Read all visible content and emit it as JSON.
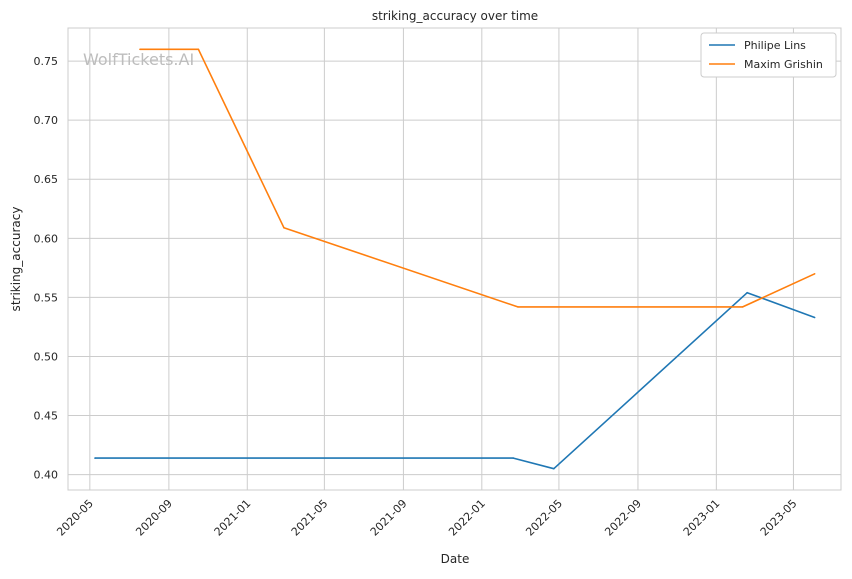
{
  "chart_data": {
    "type": "line",
    "title": "striking_accuracy over time",
    "xlabel": "Date",
    "ylabel": "striking_accuracy",
    "watermark": "WolfTickets.AI",
    "x_ticks": [
      "2020-05",
      "2020-09",
      "2021-01",
      "2021-05",
      "2021-09",
      "2022-01",
      "2022-05",
      "2022-09",
      "2023-01",
      "2023-05"
    ],
    "y_ticks": [
      "0.40",
      "0.45",
      "0.50",
      "0.55",
      "0.60",
      "0.65",
      "0.70",
      "0.75"
    ],
    "xlim": [
      "2020-03-28",
      "2023-07-14"
    ],
    "ylim": [
      0.387,
      0.778
    ],
    "grid": true,
    "legend_position": "top-right",
    "series": [
      {
        "name": "Philipe Lins",
        "color": "#1f77b4",
        "points": [
          {
            "x": "2020-05-09",
            "y": 0.414
          },
          {
            "x": "2022-02-19",
            "y": 0.414
          },
          {
            "x": "2022-04-23",
            "y": 0.405
          },
          {
            "x": "2023-02-18",
            "y": 0.554
          },
          {
            "x": "2023-06-03",
            "y": 0.533
          }
        ]
      },
      {
        "name": "Maxim Grishin",
        "color": "#ff7f0e",
        "points": [
          {
            "x": "2020-07-18",
            "y": 0.76
          },
          {
            "x": "2020-10-17",
            "y": 0.76
          },
          {
            "x": "2021-02-27",
            "y": 0.609
          },
          {
            "x": "2022-02-26",
            "y": 0.542
          },
          {
            "x": "2023-02-11",
            "y": 0.542
          },
          {
            "x": "2023-06-03",
            "y": 0.57
          }
        ]
      }
    ]
  }
}
